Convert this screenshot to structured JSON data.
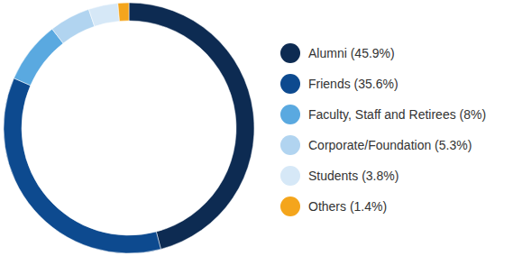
{
  "chart_data": {
    "type": "donut",
    "categories": [
      "Alumni (45.9%)",
      "Friends (35.6%)",
      "Faculty, Staff and Retirees (8%)",
      "Corporate/Foundation (5.3%)",
      "Students (3.8%)",
      "Others (1.4%)"
    ],
    "values": [
      45.9,
      35.6,
      8,
      5.3,
      3.8,
      1.4
    ],
    "colors": [
      "#0d2b52",
      "#0d4a8f",
      "#5aa9e0",
      "#b1d4f0",
      "#d6e8f7",
      "#f4a51c"
    ],
    "legend": "right"
  }
}
